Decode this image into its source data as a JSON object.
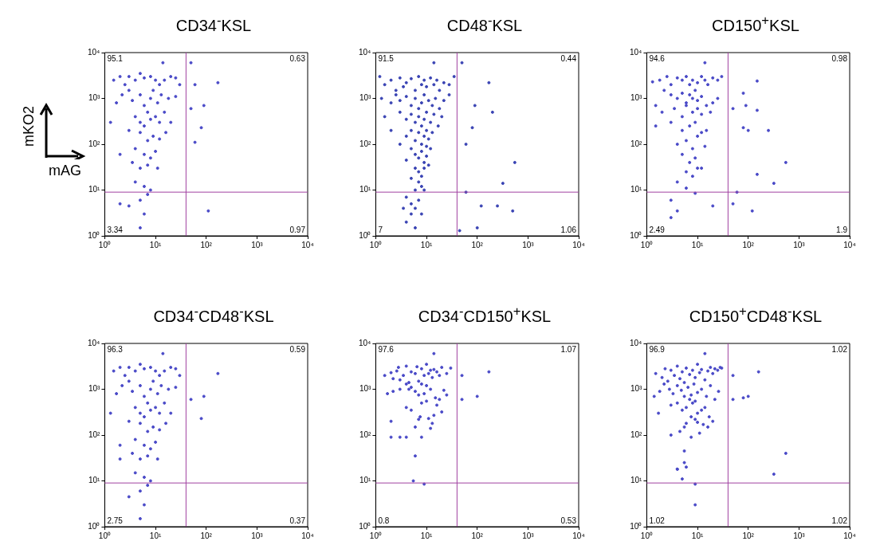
{
  "chart_data": [
    {
      "type": "scatter",
      "title": "CD34$^{-}$KSL",
      "xlabel": "mAG",
      "ylabel": "mKO2",
      "color": "#4a4ac8",
      "marker": "circle",
      "log": "xy",
      "xlim": [
        1,
        10000
      ],
      "ylim": [
        1,
        10000
      ],
      "xticks": [
        {
          "value": 1,
          "label": "10⁰"
        },
        {
          "value": 10,
          "label": "10¹"
        },
        {
          "value": 100,
          "label": "10²"
        },
        {
          "value": 1000,
          "label": "10³"
        },
        {
          "value": 10000,
          "label": "10⁴"
        }
      ],
      "yticks": [
        {
          "value": 1,
          "label": "10⁰"
        },
        {
          "value": 10,
          "label": "10¹"
        },
        {
          "value": 100,
          "label": "10²"
        },
        {
          "value": 1000,
          "label": "10³"
        },
        {
          "value": 10000,
          "label": "10⁴"
        }
      ],
      "ref_lines": [
        {
          "axis": "x",
          "value": 40,
          "color": "#a040a0"
        },
        {
          "axis": "y",
          "value": 9,
          "color": "#a040a0"
        }
      ],
      "annotations": [
        "95.1",
        "0.63",
        "3.34",
        "0.97"
      ],
      "x": [
        1.5,
        2,
        2.5,
        3,
        3,
        4,
        5,
        6,
        8,
        10,
        12,
        15,
        20,
        25,
        30,
        14,
        1.7,
        2.2,
        3.5,
        5,
        6,
        7,
        8,
        9,
        11,
        13,
        18,
        25,
        4,
        5,
        6,
        8,
        10,
        12,
        15,
        20,
        1.3,
        3,
        5,
        7,
        9,
        12,
        16,
        2,
        4,
        6,
        8,
        10,
        3.5,
        5,
        7,
        11,
        4,
        6,
        8,
        5,
        7,
        3,
        6,
        5,
        50,
        60,
        50,
        90,
        80,
        60,
        170,
        110,
        2
      ],
      "values": [
        2500,
        3000,
        2000,
        1500,
        3000,
        2500,
        3500,
        2800,
        3000,
        2500,
        2000,
        2500,
        3000,
        2800,
        2000,
        6000,
        800,
        1200,
        900,
        1200,
        700,
        500,
        1000,
        1500,
        800,
        1200,
        1000,
        1100,
        400,
        300,
        250,
        350,
        400,
        300,
        500,
        300,
        300,
        200,
        180,
        120,
        150,
        130,
        180,
        60,
        80,
        60,
        50,
        70,
        40,
        30,
        35,
        30,
        15,
        12,
        10,
        6,
        8,
        4.5,
        3,
        1.5,
        6000,
        2000,
        600,
        700,
        230,
        110,
        2200,
        3.5,
        5
      ]
    },
    {
      "type": "scatter",
      "title": "CD48$^{-}$KSL",
      "color": "#3a44b4",
      "marker": "circle",
      "log": "xy",
      "xlim": [
        1,
        10000
      ],
      "ylim": [
        1,
        10000
      ],
      "xticks": [
        {
          "value": 1,
          "label": "10⁰"
        },
        {
          "value": 10,
          "label": "10¹"
        },
        {
          "value": 100,
          "label": "10²"
        },
        {
          "value": 1000,
          "label": "10³"
        },
        {
          "value": 10000,
          "label": "10⁴"
        }
      ],
      "yticks": [
        {
          "value": 1,
          "label": "10⁰"
        },
        {
          "value": 10,
          "label": "10¹"
        },
        {
          "value": 100,
          "label": "10²"
        },
        {
          "value": 1000,
          "label": "10³"
        },
        {
          "value": 10000,
          "label": "10⁴"
        }
      ],
      "ref_lines": [
        {
          "axis": "x",
          "value": 40,
          "color": "#a040a0"
        },
        {
          "axis": "y",
          "value": 9,
          "color": "#a040a0"
        }
      ],
      "annotations": [
        "91.5",
        "0.44",
        "7",
        "1.06"
      ],
      "x": [
        1.5,
        2,
        2.5,
        3,
        3.5,
        4,
        5,
        6,
        7,
        8,
        9,
        10,
        12,
        14,
        16,
        18,
        22,
        28,
        35,
        1.3,
        2,
        2.5,
        3,
        4,
        5,
        6,
        7,
        8,
        9,
        10,
        11,
        13,
        15,
        18,
        22,
        28,
        1.5,
        3,
        4,
        5,
        6,
        7,
        8,
        9,
        10,
        12,
        14,
        17,
        20,
        2,
        4,
        5,
        6,
        7,
        8,
        9,
        10,
        11,
        13,
        3,
        5,
        6,
        7,
        8,
        9,
        10,
        12,
        4,
        6,
        7,
        8,
        9,
        11,
        5,
        7,
        8,
        9,
        6,
        4,
        5,
        6,
        7,
        8,
        5,
        4,
        6,
        3.5,
        14,
        1.2,
        50,
        170,
        90,
        80,
        200,
        60,
        550,
        320,
        60,
        120,
        250,
        500,
        100,
        45
      ],
      "values": [
        2000,
        2500,
        1500,
        2800,
        1800,
        2200,
        2700,
        1500,
        3000,
        2000,
        2500,
        1800,
        2800,
        2000,
        2500,
        1500,
        2200,
        2000,
        3000,
        1000,
        800,
        1200,
        900,
        1100,
        700,
        1000,
        600,
        800,
        1200,
        500,
        900,
        700,
        1000,
        600,
        900,
        1200,
        400,
        500,
        350,
        450,
        300,
        400,
        250,
        350,
        200,
        300,
        450,
        250,
        400,
        200,
        150,
        200,
        120,
        180,
        100,
        150,
        90,
        130,
        180,
        100,
        80,
        60,
        50,
        70,
        40,
        55,
        80,
        45,
        30,
        25,
        20,
        30,
        35,
        18,
        15,
        12,
        10,
        10,
        7,
        5,
        4,
        6,
        3,
        3,
        2,
        1.5,
        4,
        6000,
        3000,
        6000,
        2200,
        700,
        230,
        500,
        100,
        40,
        14,
        9,
        4.5,
        4.5,
        3.5,
        1.5,
        1.3
      ]
    },
    {
      "type": "scatter",
      "title": "CD150$^{+}$KSL",
      "color": "#4a4ac8",
      "marker": "circle",
      "log": "xy",
      "xlim": [
        1,
        10000
      ],
      "ylim": [
        1,
        10000
      ],
      "xticks": [
        {
          "value": 1,
          "label": "10⁰"
        },
        {
          "value": 10,
          "label": "10¹"
        },
        {
          "value": 100,
          "label": "10²"
        },
        {
          "value": 1000,
          "label": "10³"
        },
        {
          "value": 10000,
          "label": "10⁴"
        }
      ],
      "yticks": [
        {
          "value": 1,
          "label": "10⁰"
        },
        {
          "value": 10,
          "label": "10¹"
        },
        {
          "value": 100,
          "label": "10²"
        },
        {
          "value": 1000,
          "label": "10³"
        },
        {
          "value": 10000,
          "label": "10⁴"
        }
      ],
      "ref_lines": [
        {
          "axis": "x",
          "value": 40,
          "color": "#a040a0"
        },
        {
          "axis": "y",
          "value": 9,
          "color": "#a040a0"
        }
      ],
      "annotations": [
        "94.6",
        "0.98",
        "2.49",
        "1.9"
      ],
      "x": [
        1.3,
        1.8,
        2.5,
        3,
        4,
        5,
        6,
        7,
        8,
        10,
        12,
        14,
        16,
        20,
        25,
        30,
        14,
        1.5,
        2.2,
        3,
        4,
        5,
        6,
        7,
        8,
        9,
        10,
        12,
        15,
        20,
        25,
        2,
        3.5,
        5,
        6,
        8,
        10,
        12,
        18,
        1.5,
        3,
        5,
        7,
        9,
        12,
        15,
        4,
        6,
        8,
        10,
        14,
        5,
        7,
        9,
        12,
        6,
        8,
        10,
        4,
        6,
        3,
        4,
        9,
        3,
        50,
        80,
        90,
        150,
        150,
        80,
        100,
        250,
        150,
        550,
        320,
        60,
        50,
        120,
        20
      ],
      "values": [
        2300,
        2500,
        3000,
        2000,
        2800,
        2500,
        3000,
        2000,
        2500,
        2200,
        3000,
        2500,
        2000,
        2800,
        2500,
        3000,
        6000,
        700,
        1500,
        1200,
        1000,
        1300,
        800,
        1200,
        1000,
        1500,
        900,
        1100,
        700,
        800,
        1000,
        500,
        600,
        400,
        700,
        500,
        600,
        450,
        500,
        250,
        300,
        200,
        250,
        300,
        180,
        200,
        100,
        120,
        80,
        150,
        90,
        60,
        40,
        50,
        30,
        25,
        20,
        30,
        15,
        11,
        6,
        3.5,
        8.5,
        2.5,
        600,
        1300,
        700,
        2400,
        550,
        230,
        200,
        200,
        22,
        40,
        14,
        9,
        5,
        3.5,
        4.5
      ]
    },
    {
      "type": "scatter",
      "title": "CD34$^{-}$CD48$^{-}$KSL",
      "color": "#4a4ac8",
      "marker": "circle",
      "log": "xy",
      "xlim": [
        1,
        10000
      ],
      "ylim": [
        1,
        10000
      ],
      "xticks": [
        {
          "value": 1,
          "label": "10⁰"
        },
        {
          "value": 10,
          "label": "10¹"
        },
        {
          "value": 100,
          "label": "10²"
        },
        {
          "value": 1000,
          "label": "10³"
        },
        {
          "value": 10000,
          "label": "10⁴"
        }
      ],
      "yticks": [
        {
          "value": 1,
          "label": "10⁰"
        },
        {
          "value": 10,
          "label": "10¹"
        },
        {
          "value": 100,
          "label": "10²"
        },
        {
          "value": 1000,
          "label": "10³"
        },
        {
          "value": 10000,
          "label": "10⁴"
        }
      ],
      "ref_lines": [
        {
          "axis": "x",
          "value": 40,
          "color": "#a040a0"
        },
        {
          "axis": "y",
          "value": 9,
          "color": "#a040a0"
        }
      ],
      "annotations": [
        "96.3",
        "0.59",
        "2.75",
        "0.37"
      ],
      "x": [
        1.5,
        2,
        2.5,
        3,
        3,
        4,
        5,
        6,
        8,
        10,
        12,
        15,
        20,
        25,
        30,
        14,
        1.7,
        2.2,
        3.5,
        5,
        6,
        7,
        8,
        9,
        11,
        13,
        18,
        25,
        4,
        5,
        6,
        8,
        10,
        12,
        15,
        20,
        1.3,
        3,
        5,
        7,
        9,
        12,
        16,
        2,
        4,
        6,
        8,
        10,
        3.5,
        5,
        7,
        11,
        4,
        6,
        8,
        5,
        7,
        3,
        6,
        5,
        50,
        90,
        80,
        170,
        2
      ],
      "values": [
        2500,
        3000,
        2000,
        1500,
        3000,
        2500,
        3500,
        2800,
        3000,
        2500,
        2000,
        2500,
        3000,
        2800,
        2000,
        6000,
        800,
        1200,
        900,
        1200,
        700,
        500,
        1000,
        1500,
        800,
        1200,
        1000,
        1100,
        400,
        300,
        250,
        350,
        400,
        300,
        500,
        300,
        300,
        200,
        180,
        120,
        150,
        130,
        180,
        60,
        80,
        60,
        50,
        70,
        40,
        30,
        35,
        30,
        15,
        12,
        10,
        6,
        8,
        4.5,
        3,
        1.5,
        600,
        700,
        230,
        2200,
        30
      ]
    },
    {
      "type": "scatter",
      "title": "CD34$^{-}$CD150$^{+}$KSL",
      "color": "#4a4ac8",
      "marker": "circle",
      "log": "xy",
      "xlim": [
        1,
        10000
      ],
      "ylim": [
        1,
        10000
      ],
      "xticks": [
        {
          "value": 1,
          "label": "10⁰"
        },
        {
          "value": 10,
          "label": "10¹"
        },
        {
          "value": 100,
          "label": "10²"
        },
        {
          "value": 1000,
          "label": "10³"
        },
        {
          "value": 10000,
          "label": "10⁴"
        }
      ],
      "yticks": [
        {
          "value": 1,
          "label": "10⁰"
        },
        {
          "value": 10,
          "label": "10¹"
        },
        {
          "value": 100,
          "label": "10²"
        },
        {
          "value": 1000,
          "label": "10³"
        },
        {
          "value": 10000,
          "label": "10⁴"
        }
      ],
      "ref_lines": [
        {
          "axis": "x",
          "value": 40,
          "color": "#a040a0"
        },
        {
          "axis": "y",
          "value": 9,
          "color": "#a040a0"
        }
      ],
      "annotations": [
        "97.6",
        "1.07",
        "0.8",
        "0.53"
      ],
      "x": [
        1.5,
        2,
        2.2,
        2.6,
        2.8,
        3,
        3.5,
        4,
        4.5,
        5,
        6,
        6.5,
        7,
        8,
        9,
        10,
        11,
        12,
        13,
        14,
        16,
        18,
        20,
        25,
        30,
        14,
        1.7,
        2.2,
        3,
        4,
        5,
        6,
        7,
        8,
        9,
        10,
        12,
        15,
        18,
        22,
        25,
        2,
        4,
        5,
        7,
        8,
        10,
        12,
        14,
        16,
        20,
        4.5,
        6,
        7.5,
        11,
        13,
        2,
        3,
        4,
        8,
        6,
        5.5,
        9,
        50,
        50,
        100,
        170
      ],
      "values": [
        2000,
        2300,
        1700,
        2500,
        3000,
        1600,
        2000,
        3200,
        1400,
        2400,
        2200,
        3100,
        1500,
        2800,
        2000,
        3500,
        2200,
        2600,
        1800,
        2700,
        2400,
        2000,
        3000,
        2200,
        2900,
        6000,
        800,
        900,
        1000,
        1300,
        1100,
        900,
        750,
        1300,
        800,
        1200,
        1000,
        650,
        600,
        950,
        750,
        200,
        400,
        350,
        220,
        500,
        550,
        140,
        270,
        450,
        320,
        1000,
        150,
        250,
        230,
        180,
        90,
        90,
        90,
        90,
        35,
        10,
        8.5,
        2000,
        600,
        700,
        2400
      ]
    },
    {
      "type": "scatter",
      "title": "CD150$^{+}$CD48$^{-}$KSL",
      "color": "#4a4ac8",
      "marker": "circle",
      "log": "xy",
      "xlim": [
        1,
        10000
      ],
      "ylim": [
        1,
        10000
      ],
      "xticks": [
        {
          "value": 1,
          "label": "10⁰"
        },
        {
          "value": 10,
          "label": "10¹"
        },
        {
          "value": 100,
          "label": "10²"
        },
        {
          "value": 1000,
          "label": "10³"
        },
        {
          "value": 10000,
          "label": "10⁴"
        }
      ],
      "yticks": [
        {
          "value": 1,
          "label": "10⁰"
        },
        {
          "value": 10,
          "label": "10¹"
        },
        {
          "value": 100,
          "label": "10²"
        },
        {
          "value": 1000,
          "label": "10³"
        },
        {
          "value": 10000,
          "label": "10⁴"
        }
      ],
      "ref_lines": [
        {
          "axis": "x",
          "value": 40,
          "color": "#a040a0"
        },
        {
          "axis": "y",
          "value": 9,
          "color": "#a040a0"
        }
      ],
      "annotations": [
        "96.9",
        "1.02",
        "1.02",
        "1.02"
      ],
      "x": [
        1.5,
        2,
        2.3,
        2.6,
        3,
        3.5,
        4,
        4.5,
        5,
        5.5,
        6,
        7,
        8,
        9,
        10,
        11,
        12,
        14,
        16,
        18,
        20,
        22,
        25,
        28,
        30,
        14,
        1.4,
        1.8,
        2.2,
        2.8,
        3.3,
        4,
        4.8,
        5.5,
        6.5,
        7.5,
        8.5,
        10,
        12,
        15,
        18,
        22,
        26,
        1.7,
        3,
        4,
        5,
        6,
        7,
        8,
        9,
        10,
        12,
        14,
        17,
        20,
        3,
        4.5,
        6,
        7.5,
        9,
        11,
        13,
        16,
        4,
        5.5,
        7.5,
        10,
        5.5,
        5.5,
        6,
        4,
        5,
        9,
        9,
        550,
        320,
        50,
        80,
        100,
        160,
        50
      ],
      "values": [
        2200,
        1800,
        2800,
        1500,
        2600,
        2000,
        3200,
        1700,
        2400,
        1400,
        2900,
        2100,
        2600,
        1800,
        3500,
        2300,
        2700,
        1600,
        2500,
        3000,
        2200,
        2800,
        2600,
        3000,
        2900,
        6000,
        700,
        900,
        1300,
        1000,
        800,
        1200,
        950,
        700,
        1100,
        750,
        1300,
        850,
        1000,
        700,
        1200,
        600,
        900,
        300,
        450,
        500,
        350,
        400,
        600,
        500,
        550,
        300,
        350,
        400,
        250,
        200,
        100,
        120,
        180,
        90,
        220,
        110,
        170,
        150,
        18,
        150,
        250,
        190,
        45,
        25,
        20,
        18,
        11,
        8.5,
        3,
        40,
        14,
        600,
        650,
        700,
        2400,
        2000
      ]
    }
  ]
}
